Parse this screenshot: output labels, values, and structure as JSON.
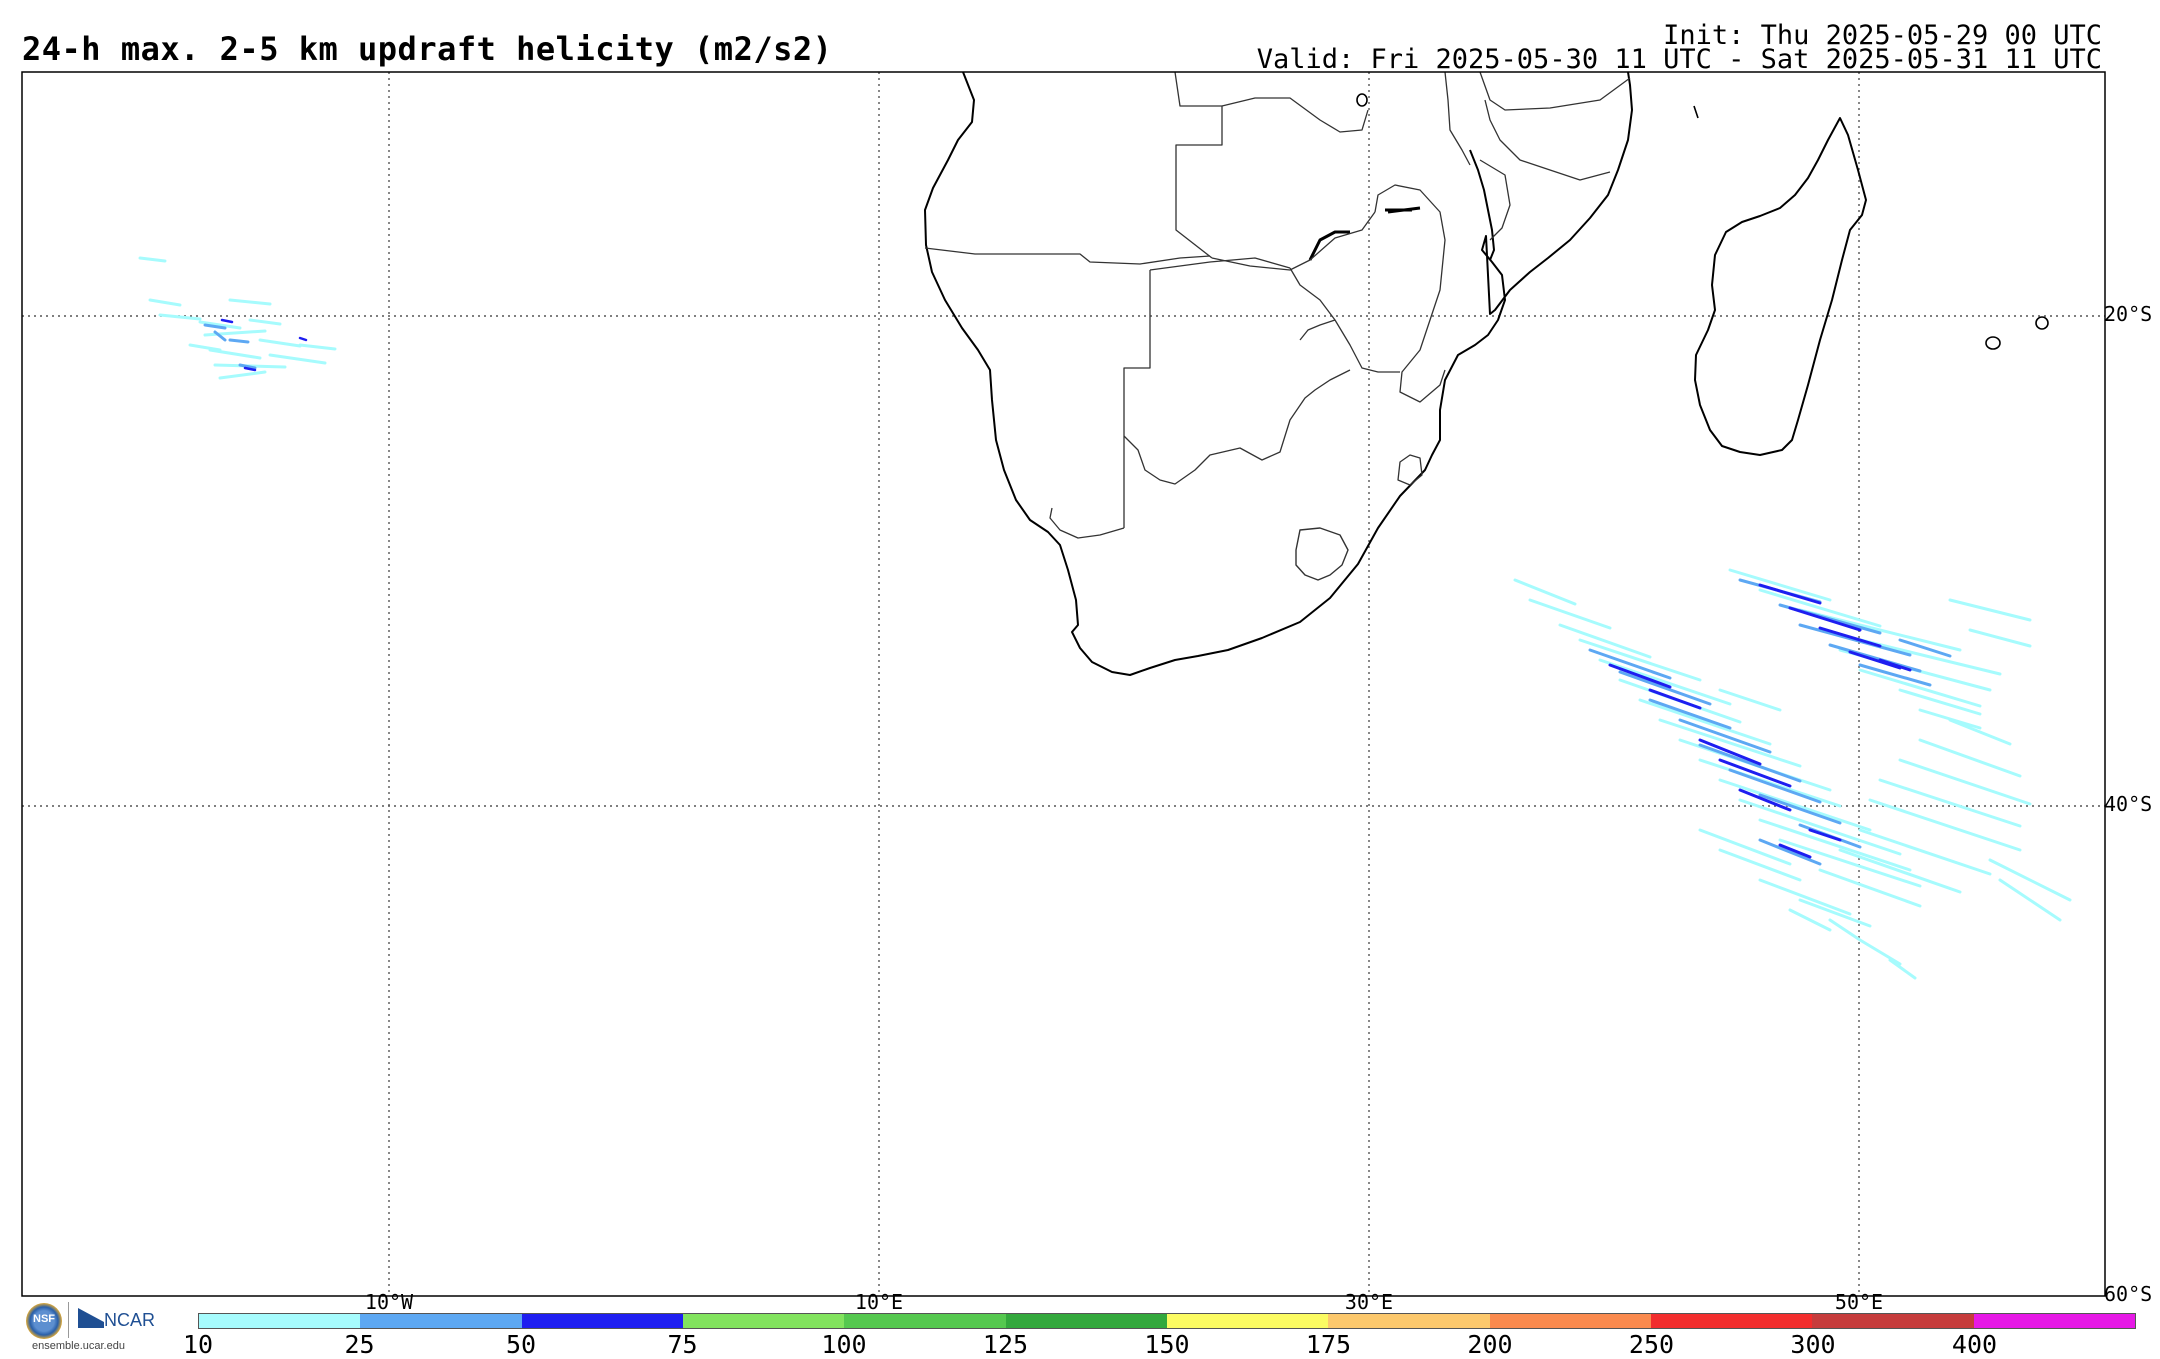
{
  "header": {
    "title": "24-h max. 2-5 km updraft helicity (m2/s2)",
    "init": "Init: Thu 2025-05-29 00 UTC",
    "valid": "Valid: Fri 2025-05-30 11 UTC - Sat 2025-05-31 11 UTC"
  },
  "map": {
    "lon_labels": [
      "10°W",
      "10°E",
      "30°E",
      "50°E"
    ],
    "lat_labels": [
      "20°S",
      "40°S",
      "60°S"
    ],
    "line_color": "#000000",
    "grid_style": "dotted"
  },
  "colorbar": {
    "ticks": [
      "10",
      "25",
      "50",
      "75",
      "100",
      "125",
      "150",
      "175",
      "200",
      "250",
      "300",
      "400"
    ],
    "colors": [
      "#a6fbfd",
      "#5da8f3",
      "#1e1ef0",
      "#82e35e",
      "#55c84f",
      "#33a83d",
      "#fbfb62",
      "#fcc86c",
      "#fa8a4e",
      "#f22d2d",
      "#c63c3c",
      "#e619e6"
    ]
  },
  "logos": {
    "nsf": "NSF",
    "ncar": "NCAR",
    "url": "ensemble.ucar.edu"
  }
}
